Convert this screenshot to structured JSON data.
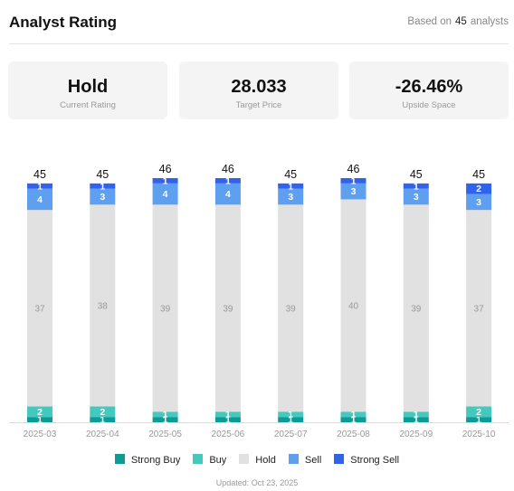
{
  "header": {
    "title": "Analyst Rating",
    "based_prefix": "Based on",
    "analyst_count": "45",
    "based_suffix": "analysts"
  },
  "cards": [
    {
      "value": "Hold",
      "label": "Current Rating"
    },
    {
      "value": "28.033",
      "label": "Target Price"
    },
    {
      "value": "-26.46%",
      "label": "Upside Space"
    }
  ],
  "colors": {
    "strong_buy": "#0e9a96",
    "buy": "#45c9bf",
    "hold": "#e1e1e1",
    "sell": "#5e9ff0",
    "strong_sell": "#2f63ee"
  },
  "chart_data": {
    "type": "bar",
    "stacked": true,
    "categories": [
      "2025-03",
      "2025-04",
      "2025-05",
      "2025-06",
      "2025-07",
      "2025-08",
      "2025-09",
      "2025-10"
    ],
    "totals": [
      45,
      45,
      46,
      46,
      45,
      46,
      45,
      45
    ],
    "series": [
      {
        "name": "Strong Buy",
        "values": [
          1,
          1,
          1,
          1,
          1,
          1,
          1,
          1
        ]
      },
      {
        "name": "Buy",
        "values": [
          2,
          2,
          1,
          1,
          1,
          1,
          1,
          2
        ]
      },
      {
        "name": "Hold",
        "values": [
          37,
          38,
          39,
          39,
          39,
          40,
          39,
          37
        ]
      },
      {
        "name": "Sell",
        "values": [
          4,
          3,
          4,
          4,
          3,
          3,
          3,
          3
        ]
      },
      {
        "name": "Strong Sell",
        "values": [
          1,
          1,
          1,
          1,
          1,
          1,
          1,
          2
        ]
      }
    ],
    "grid": false,
    "legend_position": "bottom"
  },
  "legend": [
    {
      "label": "Strong Buy",
      "color_key": "strong_buy"
    },
    {
      "label": "Buy",
      "color_key": "buy"
    },
    {
      "label": "Hold",
      "color_key": "hold"
    },
    {
      "label": "Sell",
      "color_key": "sell"
    },
    {
      "label": "Strong Sell",
      "color_key": "strong_sell"
    }
  ],
  "updated": "Updated: Oct 23, 2025"
}
